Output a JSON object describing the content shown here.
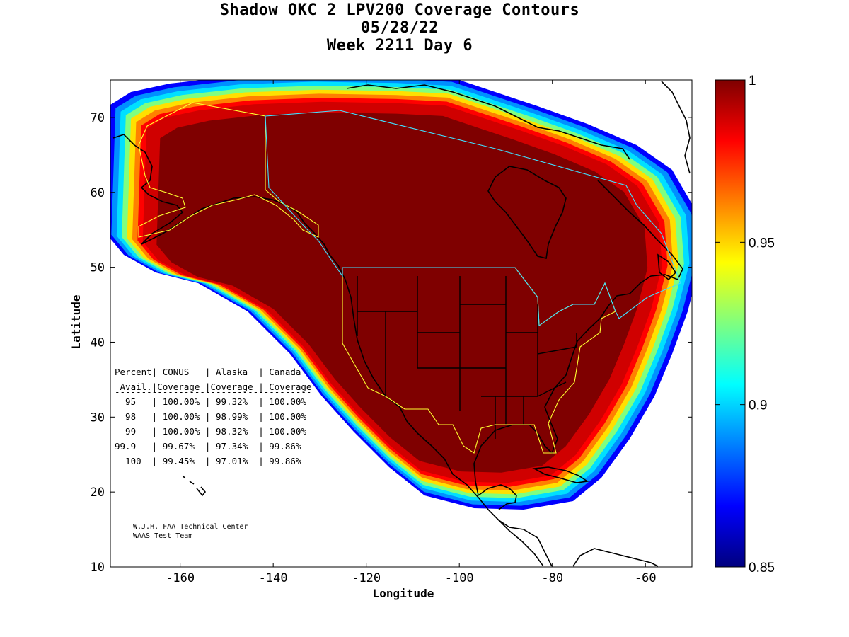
{
  "titles": [
    "Shadow OKC 2 LPV200 Coverage Contours",
    "05/28/22",
    "Week 2211 Day 6"
  ],
  "chart_data": {
    "type": "heatmap",
    "xlabel": "Longitude",
    "ylabel": "Latitude",
    "xlim": [
      -175,
      -50
    ],
    "ylim": [
      10,
      75
    ],
    "xticks": [
      -160,
      -140,
      -120,
      -100,
      -80,
      -60
    ],
    "yticks": [
      10,
      20,
      30,
      40,
      50,
      60,
      70
    ],
    "colorbar": {
      "range": [
        0.85,
        1
      ],
      "ticks": [
        {
          "value": 1,
          "label": "1"
        },
        {
          "value": 0.95,
          "label": "0.95"
        },
        {
          "value": 0.9,
          "label": "0.9"
        },
        {
          "value": 0.85,
          "label": "0.85"
        }
      ],
      "colormap": [
        "#00007f",
        "#0000ff",
        "#007fff",
        "#00ffff",
        "#7fff7f",
        "#ffff00",
        "#ff7f00",
        "#ff0000",
        "#7f0000"
      ]
    },
    "coverage_band_colors": [
      "#0000ff",
      "#0090ff",
      "#00e0ff",
      "#7fff80",
      "#ffe000",
      "#ff8000",
      "#ff0000",
      "#d00000",
      "#7f0000"
    ],
    "coverage_table": {
      "header1": "Percent| CONUS   | Alaska  | Canada",
      "header2": " Avail.|Coverage |Coverage | Coverage",
      "separator": "-------------------------------------",
      "rows": [
        {
          "percent": "95",
          "conus": "100.00%",
          "alaska": "99.32%",
          "canada": "100.00%"
        },
        {
          "percent": "98",
          "conus": "100.00%",
          "alaska": "98.99%",
          "canada": "100.00%"
        },
        {
          "percent": "99",
          "conus": "100.00%",
          "alaska": "98.32%",
          "canada": "100.00%"
        },
        {
          "percent": "99.9",
          "conus": "99.67%",
          "alaska": "97.34%",
          "canada": "99.86%"
        },
        {
          "percent": "100",
          "conus": "99.45%",
          "alaska": "97.01%",
          "canada": "99.86%"
        }
      ]
    },
    "credits": [
      "W.J.H. FAA Technical Center",
      "WAAS Test Team"
    ]
  }
}
